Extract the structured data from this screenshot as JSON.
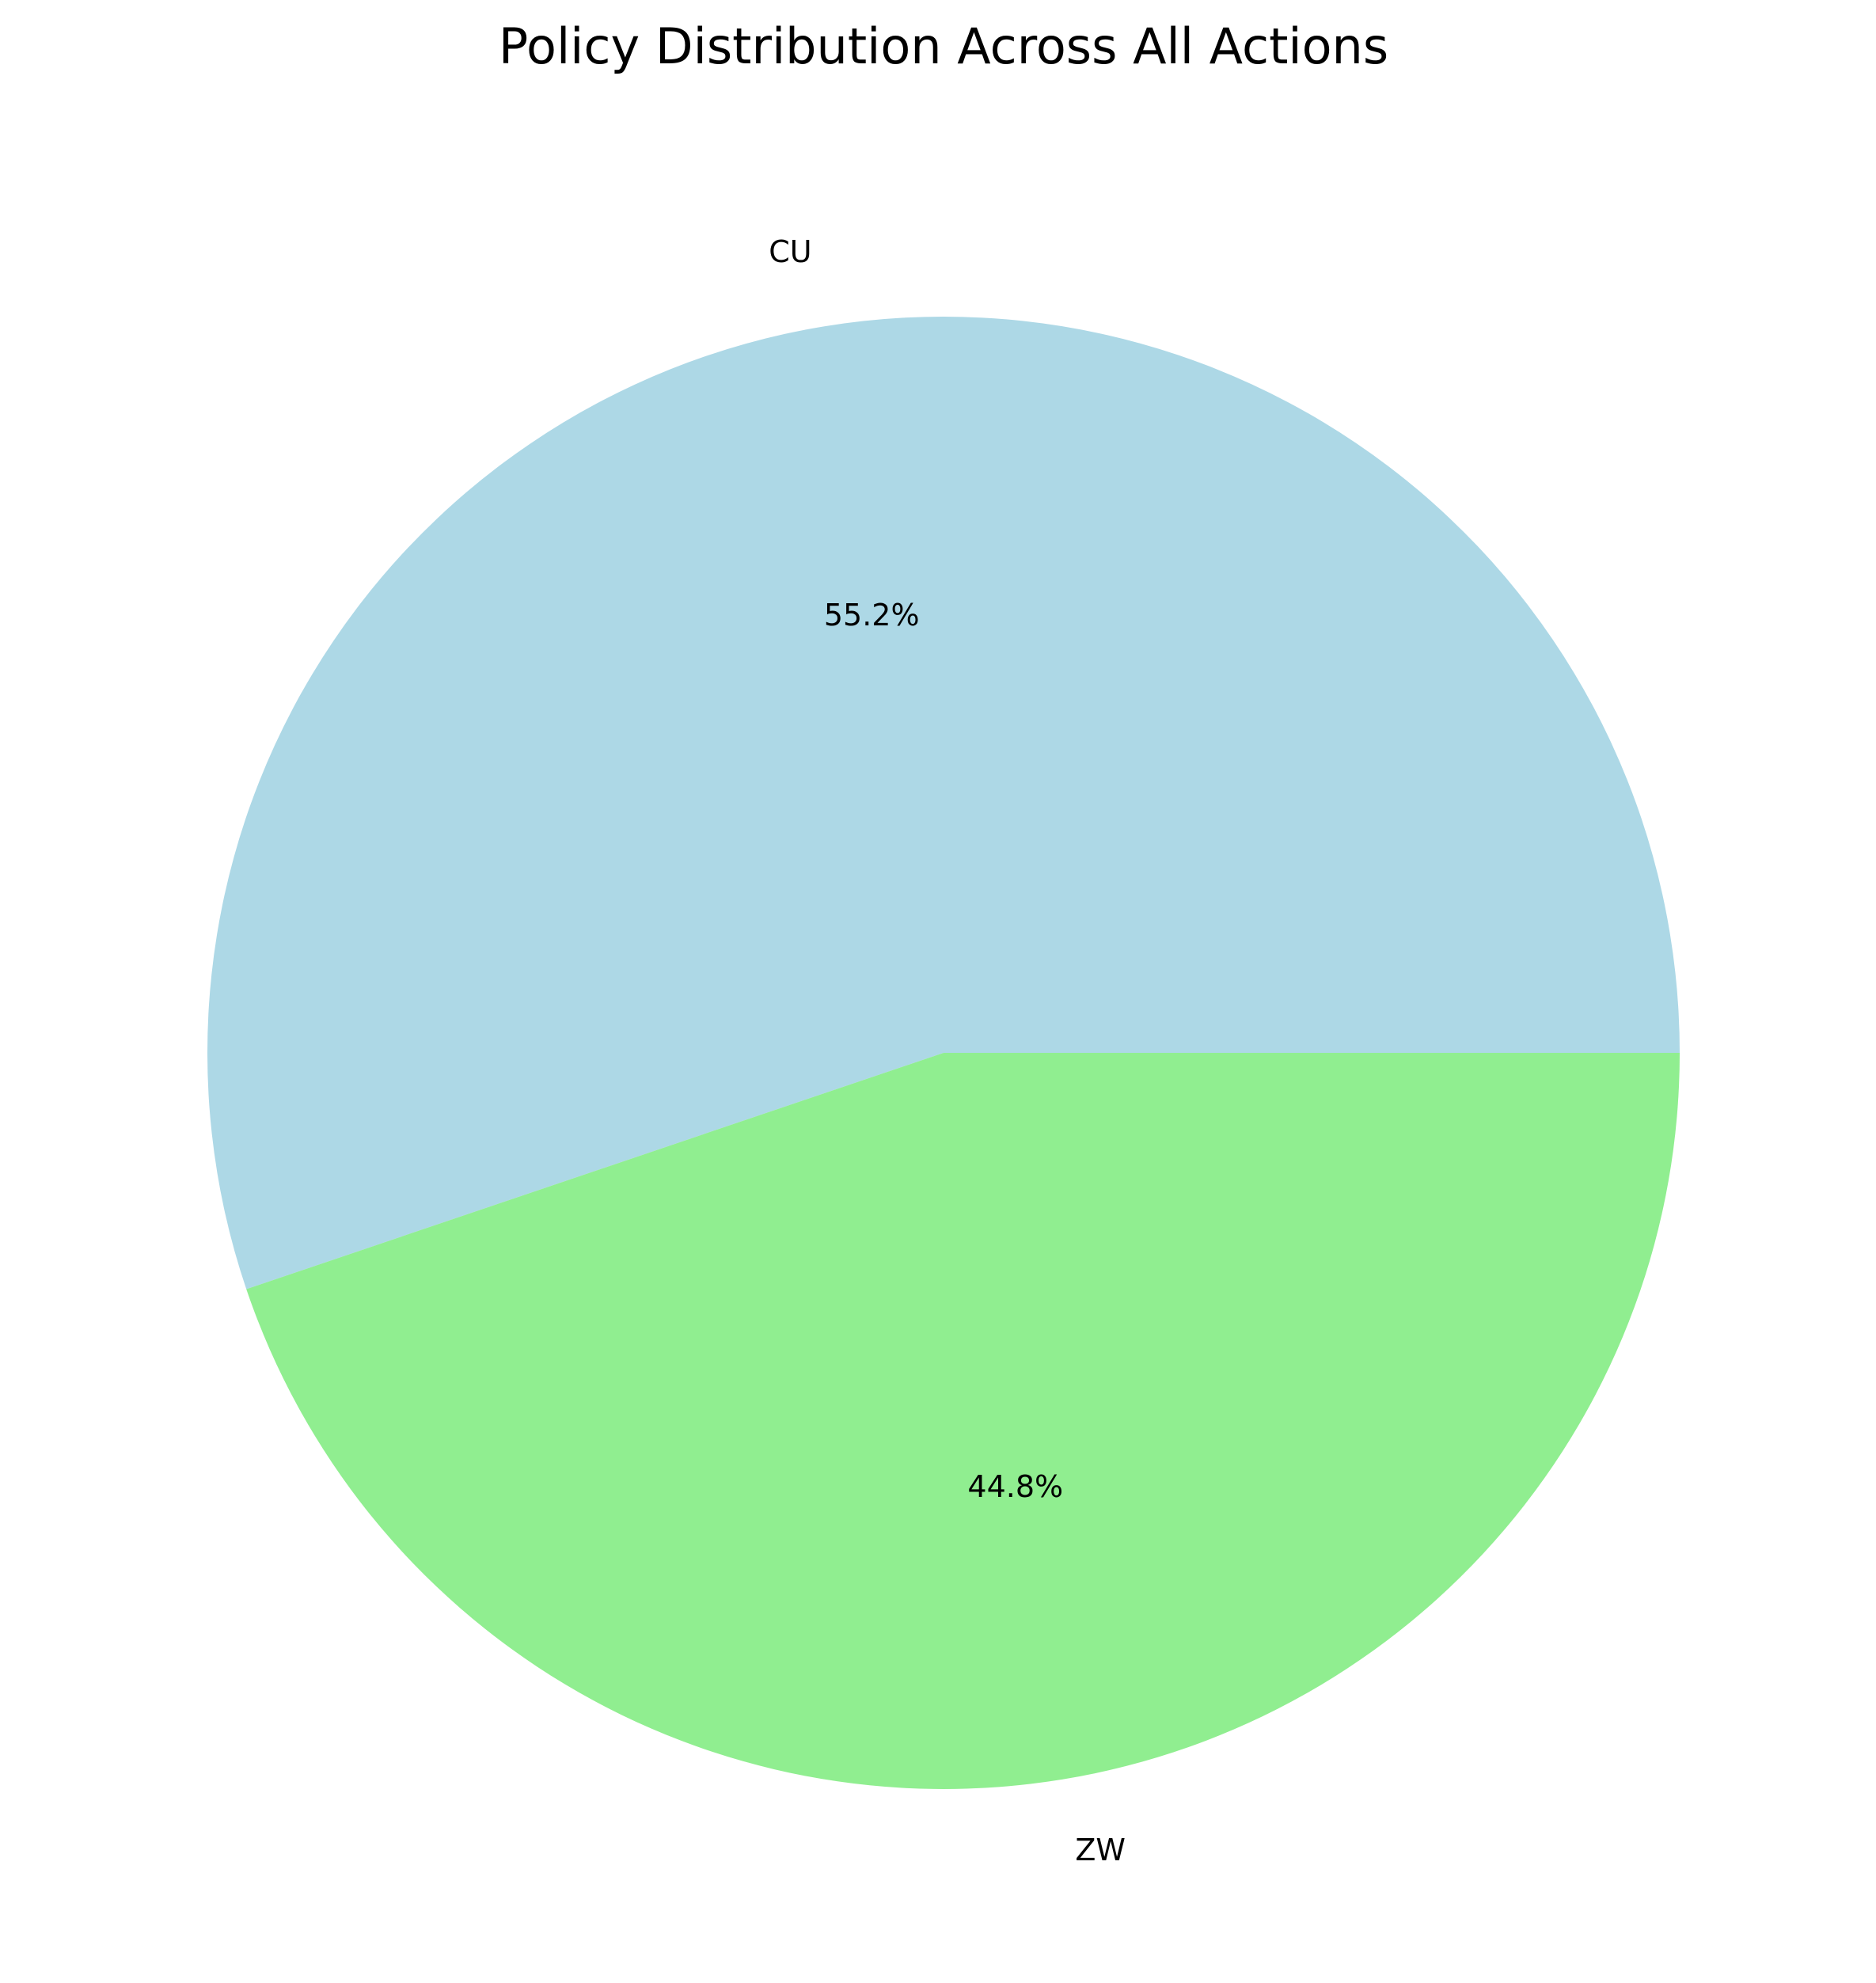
{
  "chart_data": {
    "type": "pie",
    "title": "Policy Distribution Across All Actions",
    "slices": [
      {
        "label": "CU",
        "value": 55.2,
        "pct_label": "55.2%",
        "color": "#add8e6"
      },
      {
        "label": "ZW",
        "value": 44.8,
        "pct_label": "44.8%",
        "color": "#90ee90"
      }
    ],
    "start_angle_deg": 0,
    "direction": "counterclockwise",
    "legend": "none"
  }
}
